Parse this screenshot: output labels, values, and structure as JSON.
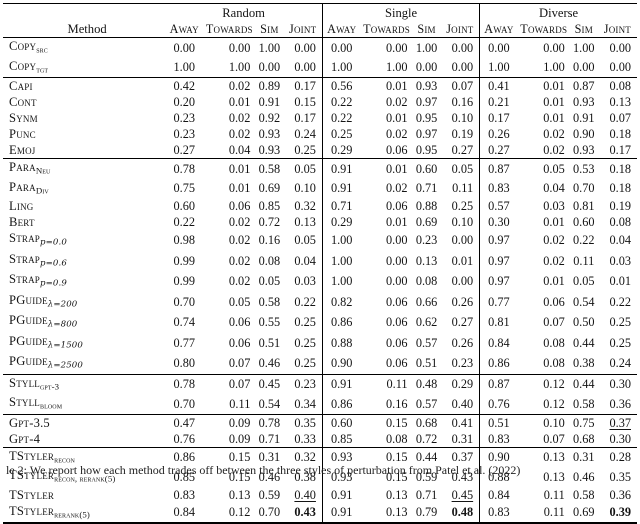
{
  "table": {
    "method_header": "Method",
    "groups": [
      {
        "label": "Random",
        "columns": [
          "Away",
          "Towards",
          "Sim",
          "Joint"
        ]
      },
      {
        "label": "Single",
        "columns": [
          "Away",
          "Towards",
          "Sim",
          "Joint"
        ]
      },
      {
        "label": "Diverse",
        "columns": [
          "Away",
          "Towards",
          "Sim",
          "Joint"
        ]
      }
    ],
    "row_groups": [
      {
        "rows": [
          {
            "method": {
              "main": "Copy",
              "sub": "src",
              "sub_style": "caps"
            },
            "values": [
              "0.00",
              "0.00",
              "1.00",
              "0.00",
              "0.00",
              "0.00",
              "1.00",
              "0.00",
              "0.00",
              "0.00",
              "1.00",
              "0.00"
            ],
            "emphasis": {}
          },
          {
            "method": {
              "main": "Copy",
              "sub": "tgt",
              "sub_style": "caps"
            },
            "values": [
              "1.00",
              "1.00",
              "0.00",
              "0.00",
              "1.00",
              "1.00",
              "0.00",
              "0.00",
              "1.00",
              "1.00",
              "0.00",
              "0.00"
            ],
            "emphasis": {}
          }
        ]
      },
      {
        "rows": [
          {
            "method": {
              "main": "Capi",
              "sub": "",
              "sub_style": "caps"
            },
            "values": [
              "0.42",
              "0.02",
              "0.89",
              "0.17",
              "0.56",
              "0.01",
              "0.93",
              "0.07",
              "0.41",
              "0.01",
              "0.87",
              "0.08"
            ],
            "emphasis": {}
          },
          {
            "method": {
              "main": "Cont",
              "sub": "",
              "sub_style": "caps"
            },
            "values": [
              "0.20",
              "0.01",
              "0.91",
              "0.15",
              "0.22",
              "0.02",
              "0.97",
              "0.16",
              "0.21",
              "0.01",
              "0.93",
              "0.13"
            ],
            "emphasis": {}
          },
          {
            "method": {
              "main": "Synm",
              "sub": "",
              "sub_style": "caps"
            },
            "values": [
              "0.23",
              "0.02",
              "0.92",
              "0.17",
              "0.22",
              "0.01",
              "0.95",
              "0.10",
              "0.17",
              "0.01",
              "0.91",
              "0.07"
            ],
            "emphasis": {}
          },
          {
            "method": {
              "main": "Punc",
              "sub": "",
              "sub_style": "caps"
            },
            "values": [
              "0.23",
              "0.02",
              "0.93",
              "0.24",
              "0.25",
              "0.02",
              "0.97",
              "0.19",
              "0.26",
              "0.02",
              "0.90",
              "0.18"
            ],
            "emphasis": {}
          },
          {
            "method": {
              "main": "Emoj",
              "sub": "",
              "sub_style": "caps"
            },
            "values": [
              "0.27",
              "0.04",
              "0.93",
              "0.25",
              "0.29",
              "0.06",
              "0.95",
              "0.27",
              "0.27",
              "0.02",
              "0.93",
              "0.17"
            ],
            "emphasis": {}
          }
        ]
      },
      {
        "rows": [
          {
            "method": {
              "main": "Para",
              "sub": "Neu",
              "sub_style": "caps"
            },
            "values": [
              "0.78",
              "0.01",
              "0.58",
              "0.05",
              "0.91",
              "0.01",
              "0.60",
              "0.05",
              "0.87",
              "0.05",
              "0.53",
              "0.18"
            ],
            "emphasis": {}
          },
          {
            "method": {
              "main": "Para",
              "sub": "Div",
              "sub_style": "caps"
            },
            "values": [
              "0.75",
              "0.01",
              "0.69",
              "0.10",
              "0.91",
              "0.02",
              "0.71",
              "0.11",
              "0.83",
              "0.04",
              "0.70",
              "0.18"
            ],
            "emphasis": {}
          },
          {
            "method": {
              "main": "Ling",
              "sub": "",
              "sub_style": "caps"
            },
            "values": [
              "0.60",
              "0.06",
              "0.85",
              "0.32",
              "0.71",
              "0.06",
              "0.88",
              "0.25",
              "0.57",
              "0.03",
              "0.81",
              "0.19"
            ],
            "emphasis": {}
          },
          {
            "method": {
              "main": "Bert",
              "sub": "",
              "sub_style": "caps"
            },
            "values": [
              "0.22",
              "0.02",
              "0.72",
              "0.13",
              "0.29",
              "0.01",
              "0.69",
              "0.10",
              "0.30",
              "0.01",
              "0.60",
              "0.08"
            ],
            "emphasis": {}
          },
          {
            "method": {
              "main": "Strap",
              "sub": "p=0.0",
              "sub_style": "math"
            },
            "values": [
              "0.98",
              "0.02",
              "0.16",
              "0.05",
              "1.00",
              "0.00",
              "0.23",
              "0.00",
              "0.97",
              "0.02",
              "0.22",
              "0.04"
            ],
            "emphasis": {}
          },
          {
            "method": {
              "main": "Strap",
              "sub": "p=0.6",
              "sub_style": "math"
            },
            "values": [
              "0.99",
              "0.02",
              "0.08",
              "0.04",
              "1.00",
              "0.00",
              "0.13",
              "0.01",
              "0.97",
              "0.02",
              "0.11",
              "0.03"
            ],
            "emphasis": {}
          },
          {
            "method": {
              "main": "Strap",
              "sub": "p=0.9",
              "sub_style": "math"
            },
            "values": [
              "0.99",
              "0.02",
              "0.05",
              "0.03",
              "1.00",
              "0.00",
              "0.08",
              "0.00",
              "0.97",
              "0.01",
              "0.05",
              "0.01"
            ],
            "emphasis": {}
          },
          {
            "method": {
              "main": "PGuide",
              "sub": "λ=200",
              "sub_style": "math"
            },
            "values": [
              "0.70",
              "0.05",
              "0.58",
              "0.22",
              "0.82",
              "0.06",
              "0.66",
              "0.26",
              "0.77",
              "0.06",
              "0.54",
              "0.22"
            ],
            "emphasis": {}
          },
          {
            "method": {
              "main": "PGuide",
              "sub": "λ=800",
              "sub_style": "math"
            },
            "values": [
              "0.74",
              "0.06",
              "0.55",
              "0.25",
              "0.86",
              "0.06",
              "0.62",
              "0.27",
              "0.81",
              "0.07",
              "0.50",
              "0.25"
            ],
            "emphasis": {}
          },
          {
            "method": {
              "main": "PGuide",
              "sub": "λ=1500",
              "sub_style": "math"
            },
            "values": [
              "0.77",
              "0.06",
              "0.51",
              "0.25",
              "0.88",
              "0.06",
              "0.57",
              "0.26",
              "0.84",
              "0.08",
              "0.44",
              "0.25"
            ],
            "emphasis": {}
          },
          {
            "method": {
              "main": "PGuide",
              "sub": "λ=2500",
              "sub_style": "math"
            },
            "values": [
              "0.80",
              "0.07",
              "0.46",
              "0.25",
              "0.90",
              "0.06",
              "0.51",
              "0.23",
              "0.86",
              "0.08",
              "0.38",
              "0.24"
            ],
            "emphasis": {}
          }
        ]
      },
      {
        "rows": [
          {
            "method": {
              "main": "Styll",
              "sub": "gpt-3",
              "sub_style": "caps"
            },
            "values": [
              "0.78",
              "0.07",
              "0.45",
              "0.23",
              "0.91",
              "0.11",
              "0.48",
              "0.29",
              "0.87",
              "0.12",
              "0.44",
              "0.30"
            ],
            "emphasis": {}
          },
          {
            "method": {
              "main": "Styll",
              "sub": "bloom",
              "sub_style": "caps"
            },
            "values": [
              "0.70",
              "0.11",
              "0.54",
              "0.34",
              "0.86",
              "0.16",
              "0.57",
              "0.40",
              "0.76",
              "0.12",
              "0.58",
              "0.36"
            ],
            "emphasis": {}
          }
        ]
      },
      {
        "rows": [
          {
            "method": {
              "main": "Gpt-3.5",
              "sub": "",
              "sub_style": "caps"
            },
            "values": [
              "0.47",
              "0.09",
              "0.78",
              "0.35",
              "0.60",
              "0.15",
              "0.68",
              "0.41",
              "0.51",
              "0.10",
              "0.75",
              "0.37"
            ],
            "emphasis": {
              "11": "u"
            }
          },
          {
            "method": {
              "main": "Gpt-4",
              "sub": "",
              "sub_style": "caps"
            },
            "values": [
              "0.76",
              "0.09",
              "0.71",
              "0.33",
              "0.85",
              "0.08",
              "0.72",
              "0.31",
              "0.83",
              "0.07",
              "0.68",
              "0.30"
            ],
            "emphasis": {}
          }
        ]
      },
      {
        "rows": [
          {
            "method": {
              "main": "TStyler",
              "sub": "recon",
              "sub_style": "caps"
            },
            "values": [
              "0.86",
              "0.15",
              "0.31",
              "0.32",
              "0.93",
              "0.15",
              "0.44",
              "0.37",
              "0.90",
              "0.13",
              "0.31",
              "0.28"
            ],
            "emphasis": {}
          },
          {
            "method": {
              "main": "TStyler",
              "sub": "recon, rerank(5)",
              "sub_style": "caps"
            },
            "values": [
              "0.85",
              "0.15",
              "0.46",
              "0.38",
              "0.93",
              "0.15",
              "0.59",
              "0.43",
              "0.88",
              "0.13",
              "0.46",
              "0.35"
            ],
            "emphasis": {}
          },
          {
            "method": {
              "main": "TStyler",
              "sub": "",
              "sub_style": "caps"
            },
            "values": [
              "0.83",
              "0.13",
              "0.59",
              "0.40",
              "0.91",
              "0.13",
              "0.71",
              "0.45",
              "0.84",
              "0.11",
              "0.58",
              "0.36"
            ],
            "emphasis": {
              "3": "u",
              "7": "u"
            }
          },
          {
            "method": {
              "main": "TStyler",
              "sub": "rerank(5)",
              "sub_style": "caps"
            },
            "values": [
              "0.84",
              "0.12",
              "0.70",
              "0.43",
              "0.91",
              "0.13",
              "0.79",
              "0.48",
              "0.83",
              "0.11",
              "0.69",
              "0.39"
            ],
            "emphasis": {
              "3": "b",
              "7": "b",
              "11": "b"
            }
          }
        ]
      }
    ]
  },
  "caption": "le 2: We report how each method trades off between the three styles of perturbation from Patel et al. (2022)"
}
